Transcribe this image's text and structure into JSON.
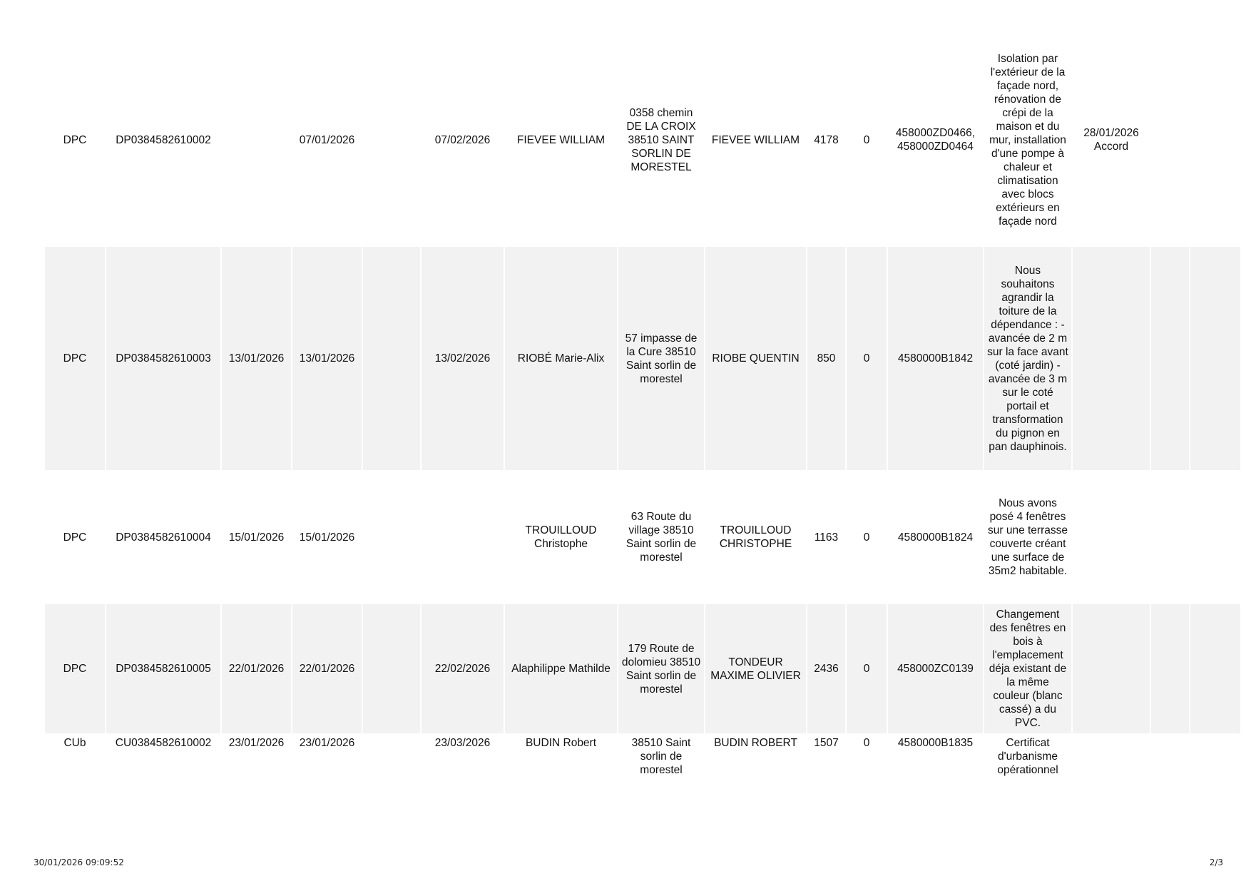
{
  "rows": [
    {
      "type": "DPC",
      "number": "DP0384582610002",
      "date1": "",
      "date2": "07/01/2026",
      "col5": "",
      "date3": "07/02/2026",
      "applicant": "FIEVEE WILLIAM",
      "address": "0358 chemin DE LA CROIX 38510 SAINT SORLIN DE MORESTEL",
      "owner": "FIEVEE WILLIAM",
      "surface": "4178",
      "value": "0",
      "parcels": "458000ZD0466, 458000ZD0464",
      "description": "Isolation par l'extérieur de la façade nord, rénovation de crépi de la maison et du mur, installation d'une pompe à chaleur et climatisation avec blocs extérieurs en façade nord",
      "decision": "28/01/2026 Accord",
      "col15": "",
      "col16": ""
    },
    {
      "type": "DPC",
      "number": "DP0384582610003",
      "date1": "13/01/2026",
      "date2": "13/01/2026",
      "col5": "",
      "date3": "13/02/2026",
      "applicant": "RIOBÉ Marie-Alix",
      "address": "57 impasse de la Cure 38510 Saint sorlin de morestel",
      "owner": "RIOBE QUENTIN",
      "surface": "850",
      "value": "0",
      "parcels": "4580000B1842",
      "description": "Nous souhaitons agrandir la toiture de la dépendance : - avancée de 2 m sur la face avant (coté jardin) - avancée de 3 m sur le coté portail et transformation du pignon en pan dauphinois.",
      "decision": "",
      "col15": "",
      "col16": ""
    },
    {
      "type": "DPC",
      "number": "DP0384582610004",
      "date1": "15/01/2026",
      "date2": "15/01/2026",
      "col5": "",
      "date3": "",
      "applicant": "TROUILLOUD Christophe",
      "address": "63 Route du village 38510 Saint sorlin de morestel",
      "owner": "TROUILLOUD CHRISTOPHE",
      "surface": "1163",
      "value": "0",
      "parcels": "4580000B1824",
      "description": "Nous avons posé 4 fenêtres sur une terrasse couverte créant une surface de 35m2 habitable.",
      "decision": "",
      "col15": "",
      "col16": ""
    },
    {
      "type": "DPC",
      "number": "DP0384582610005",
      "date1": "22/01/2026",
      "date2": "22/01/2026",
      "col5": "",
      "date3": "22/02/2026",
      "applicant": "Alaphilippe Mathilde",
      "address": "179 Route de dolomieu 38510 Saint sorlin de morestel",
      "owner": "TONDEUR MAXIME OLIVIER",
      "surface": "2436",
      "value": "0",
      "parcels": "458000ZC0139",
      "description": "Changement des fenêtres en bois à l'emplacement déja existant de la même couleur (blanc cassé) a du PVC.",
      "decision": "",
      "col15": "",
      "col16": ""
    },
    {
      "type": "CUb",
      "number": "CU0384582610002",
      "date1": "23/01/2026",
      "date2": "23/01/2026",
      "col5": "",
      "date3": "23/03/2026",
      "applicant": "BUDIN Robert",
      "address": "38510 Saint sorlin de morestel",
      "owner": "BUDIN ROBERT",
      "surface": "1507",
      "value": "0",
      "parcels": "4580000B1835",
      "description": "Certificat d'urbanisme opérationnel",
      "decision": "",
      "col15": "",
      "col16": ""
    }
  ],
  "footer": {
    "timestamp": "30/01/2026 09:09:52",
    "page": "2/3"
  }
}
